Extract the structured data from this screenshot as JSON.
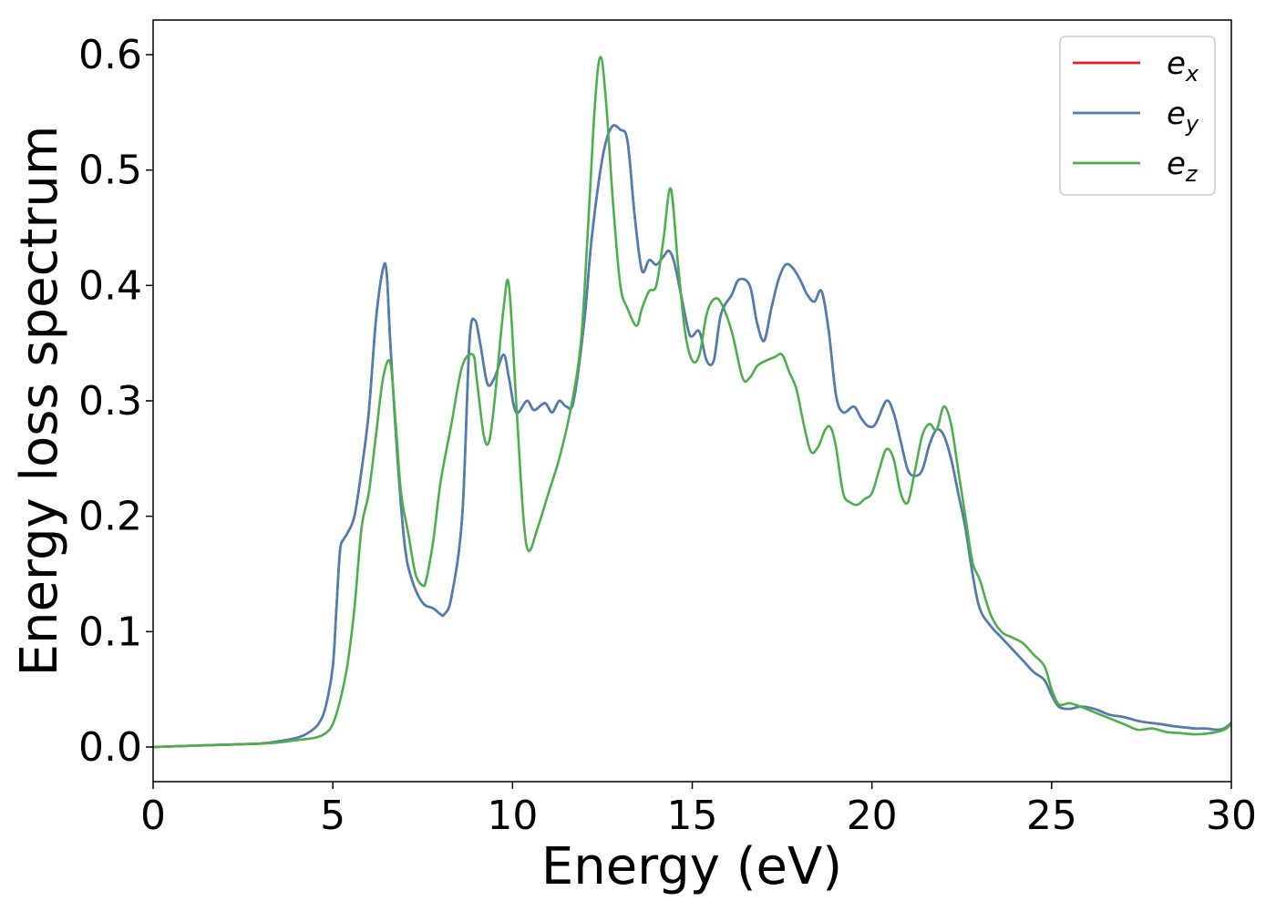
{
  "chart_data": {
    "type": "line",
    "title": "",
    "xlabel": "Energy (eV)",
    "ylabel": "Energy loss spectrum",
    "xlim": [
      0,
      30
    ],
    "ylim": [
      -0.03,
      0.63
    ],
    "xticks": [
      0,
      5,
      10,
      15,
      20,
      25,
      30
    ],
    "xtick_labels": [
      "0",
      "5",
      "10",
      "15",
      "20",
      "25",
      "30"
    ],
    "yticks": [
      0.0,
      0.1,
      0.2,
      0.3,
      0.4,
      0.5,
      0.6
    ],
    "ytick_labels": [
      "0.0",
      "0.1",
      "0.2",
      "0.3",
      "0.4",
      "0.5",
      "0.6"
    ],
    "grid": false,
    "legend_position": "top-right",
    "series": [
      {
        "name": "e_x",
        "legend_base": "e",
        "legend_sub": "x",
        "color": "#e41a1c",
        "x": [
          0,
          1,
          2,
          3,
          3.5,
          4,
          4.3,
          4.6,
          4.8,
          5.0,
          5.1,
          5.2,
          5.3,
          5.4,
          5.6,
          5.8,
          6.0,
          6.2,
          6.4,
          6.5,
          6.6,
          6.8,
          7.0,
          7.2,
          7.5,
          7.8,
          8.0,
          8.1,
          8.3,
          8.6,
          8.8,
          8.95,
          9.1,
          9.3,
          9.5,
          9.75,
          9.9,
          10.1,
          10.4,
          10.6,
          10.9,
          11.1,
          11.3,
          11.5,
          11.7,
          12.0,
          12.2,
          12.5,
          12.75,
          13.0,
          13.2,
          13.4,
          13.6,
          13.8,
          14.0,
          14.2,
          14.35,
          14.5,
          14.7,
          14.9,
          15.0,
          15.2,
          15.4,
          15.6,
          15.8,
          16.1,
          16.3,
          16.6,
          16.8,
          17.0,
          17.2,
          17.4,
          17.6,
          17.8,
          18.0,
          18.2,
          18.4,
          18.6,
          18.8,
          19.0,
          19.2,
          19.5,
          19.7,
          19.9,
          20.1,
          20.4,
          20.6,
          20.8,
          21.0,
          21.2,
          21.4,
          21.6,
          21.8,
          22.0,
          22.2,
          22.4,
          22.6,
          22.8,
          23.0,
          23.3,
          23.6,
          23.9,
          24.2,
          24.5,
          24.8,
          25.0,
          25.2,
          25.5,
          25.8,
          26.2,
          26.6,
          27.0,
          27.5,
          28.0,
          28.4,
          28.7,
          29.0,
          29.3,
          29.6,
          29.8,
          30.0
        ],
        "y": [
          0.0,
          0.001,
          0.002,
          0.003,
          0.005,
          0.008,
          0.012,
          0.02,
          0.035,
          0.07,
          0.12,
          0.17,
          0.18,
          0.185,
          0.2,
          0.24,
          0.29,
          0.37,
          0.415,
          0.41,
          0.35,
          0.25,
          0.175,
          0.145,
          0.125,
          0.12,
          0.115,
          0.115,
          0.13,
          0.2,
          0.35,
          0.37,
          0.35,
          0.315,
          0.32,
          0.34,
          0.32,
          0.29,
          0.3,
          0.292,
          0.298,
          0.29,
          0.3,
          0.295,
          0.3,
          0.37,
          0.44,
          0.51,
          0.537,
          0.535,
          0.525,
          0.46,
          0.413,
          0.422,
          0.418,
          0.425,
          0.43,
          0.42,
          0.39,
          0.36,
          0.356,
          0.36,
          0.335,
          0.335,
          0.375,
          0.392,
          0.405,
          0.4,
          0.368,
          0.352,
          0.38,
          0.405,
          0.418,
          0.415,
          0.405,
          0.392,
          0.386,
          0.395,
          0.36,
          0.305,
          0.29,
          0.295,
          0.285,
          0.278,
          0.28,
          0.3,
          0.29,
          0.265,
          0.24,
          0.235,
          0.24,
          0.262,
          0.275,
          0.27,
          0.25,
          0.22,
          0.19,
          0.15,
          0.12,
          0.105,
          0.095,
          0.085,
          0.075,
          0.065,
          0.058,
          0.045,
          0.035,
          0.033,
          0.035,
          0.033,
          0.028,
          0.026,
          0.022,
          0.02,
          0.018,
          0.017,
          0.016,
          0.016,
          0.015,
          0.016,
          0.021
        ]
      },
      {
        "name": "e_y",
        "legend_base": "e",
        "legend_sub": "y",
        "color": "#4a7fb8",
        "x": [
          0,
          1,
          2,
          3,
          3.5,
          4,
          4.3,
          4.6,
          4.8,
          5.0,
          5.1,
          5.2,
          5.3,
          5.4,
          5.6,
          5.8,
          6.0,
          6.2,
          6.4,
          6.5,
          6.6,
          6.8,
          7.0,
          7.2,
          7.5,
          7.8,
          8.0,
          8.1,
          8.3,
          8.6,
          8.8,
          8.95,
          9.1,
          9.3,
          9.5,
          9.75,
          9.9,
          10.1,
          10.4,
          10.6,
          10.9,
          11.1,
          11.3,
          11.5,
          11.7,
          12.0,
          12.2,
          12.5,
          12.75,
          13.0,
          13.2,
          13.4,
          13.6,
          13.8,
          14.0,
          14.2,
          14.35,
          14.5,
          14.7,
          14.9,
          15.0,
          15.2,
          15.4,
          15.6,
          15.8,
          16.1,
          16.3,
          16.6,
          16.8,
          17.0,
          17.2,
          17.4,
          17.6,
          17.8,
          18.0,
          18.2,
          18.4,
          18.6,
          18.8,
          19.0,
          19.2,
          19.5,
          19.7,
          19.9,
          20.1,
          20.4,
          20.6,
          20.8,
          21.0,
          21.2,
          21.4,
          21.6,
          21.8,
          22.0,
          22.2,
          22.4,
          22.6,
          22.8,
          23.0,
          23.3,
          23.6,
          23.9,
          24.2,
          24.5,
          24.8,
          25.0,
          25.2,
          25.5,
          25.8,
          26.2,
          26.6,
          27.0,
          27.5,
          28.0,
          28.4,
          28.7,
          29.0,
          29.3,
          29.6,
          29.8,
          30.0
        ],
        "y": [
          0.0,
          0.001,
          0.002,
          0.003,
          0.005,
          0.008,
          0.012,
          0.02,
          0.035,
          0.07,
          0.12,
          0.17,
          0.18,
          0.185,
          0.2,
          0.24,
          0.29,
          0.37,
          0.415,
          0.41,
          0.35,
          0.25,
          0.175,
          0.145,
          0.125,
          0.12,
          0.115,
          0.115,
          0.13,
          0.2,
          0.35,
          0.37,
          0.35,
          0.315,
          0.32,
          0.34,
          0.32,
          0.29,
          0.3,
          0.292,
          0.298,
          0.29,
          0.3,
          0.295,
          0.3,
          0.37,
          0.44,
          0.51,
          0.537,
          0.535,
          0.525,
          0.46,
          0.413,
          0.422,
          0.418,
          0.425,
          0.43,
          0.42,
          0.39,
          0.36,
          0.356,
          0.36,
          0.335,
          0.335,
          0.375,
          0.392,
          0.405,
          0.4,
          0.368,
          0.352,
          0.38,
          0.405,
          0.418,
          0.415,
          0.405,
          0.392,
          0.386,
          0.395,
          0.36,
          0.305,
          0.29,
          0.295,
          0.285,
          0.278,
          0.28,
          0.3,
          0.29,
          0.265,
          0.24,
          0.235,
          0.24,
          0.262,
          0.275,
          0.27,
          0.25,
          0.22,
          0.19,
          0.15,
          0.12,
          0.105,
          0.095,
          0.085,
          0.075,
          0.065,
          0.058,
          0.045,
          0.035,
          0.033,
          0.035,
          0.033,
          0.028,
          0.026,
          0.022,
          0.02,
          0.018,
          0.017,
          0.016,
          0.016,
          0.015,
          0.016,
          0.021
        ]
      },
      {
        "name": "e_z",
        "legend_base": "e",
        "legend_sub": "z",
        "color": "#4daf4a",
        "x": [
          0,
          1,
          2,
          3,
          3.5,
          4,
          4.5,
          4.8,
          5.0,
          5.2,
          5.4,
          5.6,
          5.8,
          6.0,
          6.2,
          6.4,
          6.6,
          6.75,
          6.9,
          7.1,
          7.3,
          7.5,
          7.6,
          7.8,
          8.0,
          8.3,
          8.6,
          8.9,
          9.0,
          9.2,
          9.35,
          9.5,
          9.75,
          9.9,
          10.1,
          10.3,
          10.45,
          10.7,
          11.0,
          11.3,
          11.6,
          11.9,
          12.1,
          12.3,
          12.45,
          12.6,
          12.8,
          13.0,
          13.2,
          13.45,
          13.6,
          13.8,
          14.0,
          14.2,
          14.4,
          14.6,
          14.8,
          15.0,
          15.2,
          15.4,
          15.6,
          15.8,
          16.1,
          16.4,
          16.6,
          16.8,
          17.0,
          17.3,
          17.5,
          17.7,
          17.9,
          18.1,
          18.3,
          18.5,
          18.7,
          18.85,
          19.0,
          19.2,
          19.4,
          19.6,
          19.8,
          20.0,
          20.2,
          20.4,
          20.6,
          20.8,
          21.0,
          21.2,
          21.4,
          21.6,
          21.8,
          22.0,
          22.2,
          22.4,
          22.6,
          22.8,
          23.0,
          23.3,
          23.6,
          23.9,
          24.2,
          24.5,
          24.8,
          25.0,
          25.2,
          25.5,
          25.8,
          26.2,
          26.6,
          27.0,
          27.4,
          27.8,
          28.2,
          28.6,
          29.0,
          29.4,
          29.8,
          30.0
        ],
        "y": [
          0.0,
          0.001,
          0.002,
          0.003,
          0.004,
          0.006,
          0.008,
          0.012,
          0.02,
          0.04,
          0.07,
          0.12,
          0.19,
          0.22,
          0.27,
          0.32,
          0.333,
          0.28,
          0.22,
          0.185,
          0.15,
          0.14,
          0.145,
          0.18,
          0.23,
          0.28,
          0.33,
          0.34,
          0.32,
          0.27,
          0.265,
          0.3,
          0.38,
          0.4,
          0.3,
          0.2,
          0.17,
          0.19,
          0.22,
          0.25,
          0.29,
          0.35,
          0.45,
          0.56,
          0.598,
          0.56,
          0.47,
          0.4,
          0.38,
          0.365,
          0.38,
          0.395,
          0.4,
          0.44,
          0.484,
          0.42,
          0.36,
          0.335,
          0.34,
          0.375,
          0.388,
          0.385,
          0.36,
          0.32,
          0.32,
          0.33,
          0.334,
          0.338,
          0.34,
          0.325,
          0.31,
          0.28,
          0.256,
          0.26,
          0.275,
          0.277,
          0.26,
          0.22,
          0.212,
          0.21,
          0.215,
          0.22,
          0.24,
          0.258,
          0.25,
          0.22,
          0.212,
          0.24,
          0.27,
          0.28,
          0.275,
          0.295,
          0.28,
          0.24,
          0.2,
          0.16,
          0.145,
          0.115,
          0.1,
          0.095,
          0.09,
          0.08,
          0.07,
          0.05,
          0.037,
          0.038,
          0.035,
          0.03,
          0.025,
          0.02,
          0.015,
          0.016,
          0.013,
          0.012,
          0.011,
          0.012,
          0.015,
          0.02
        ]
      }
    ]
  }
}
